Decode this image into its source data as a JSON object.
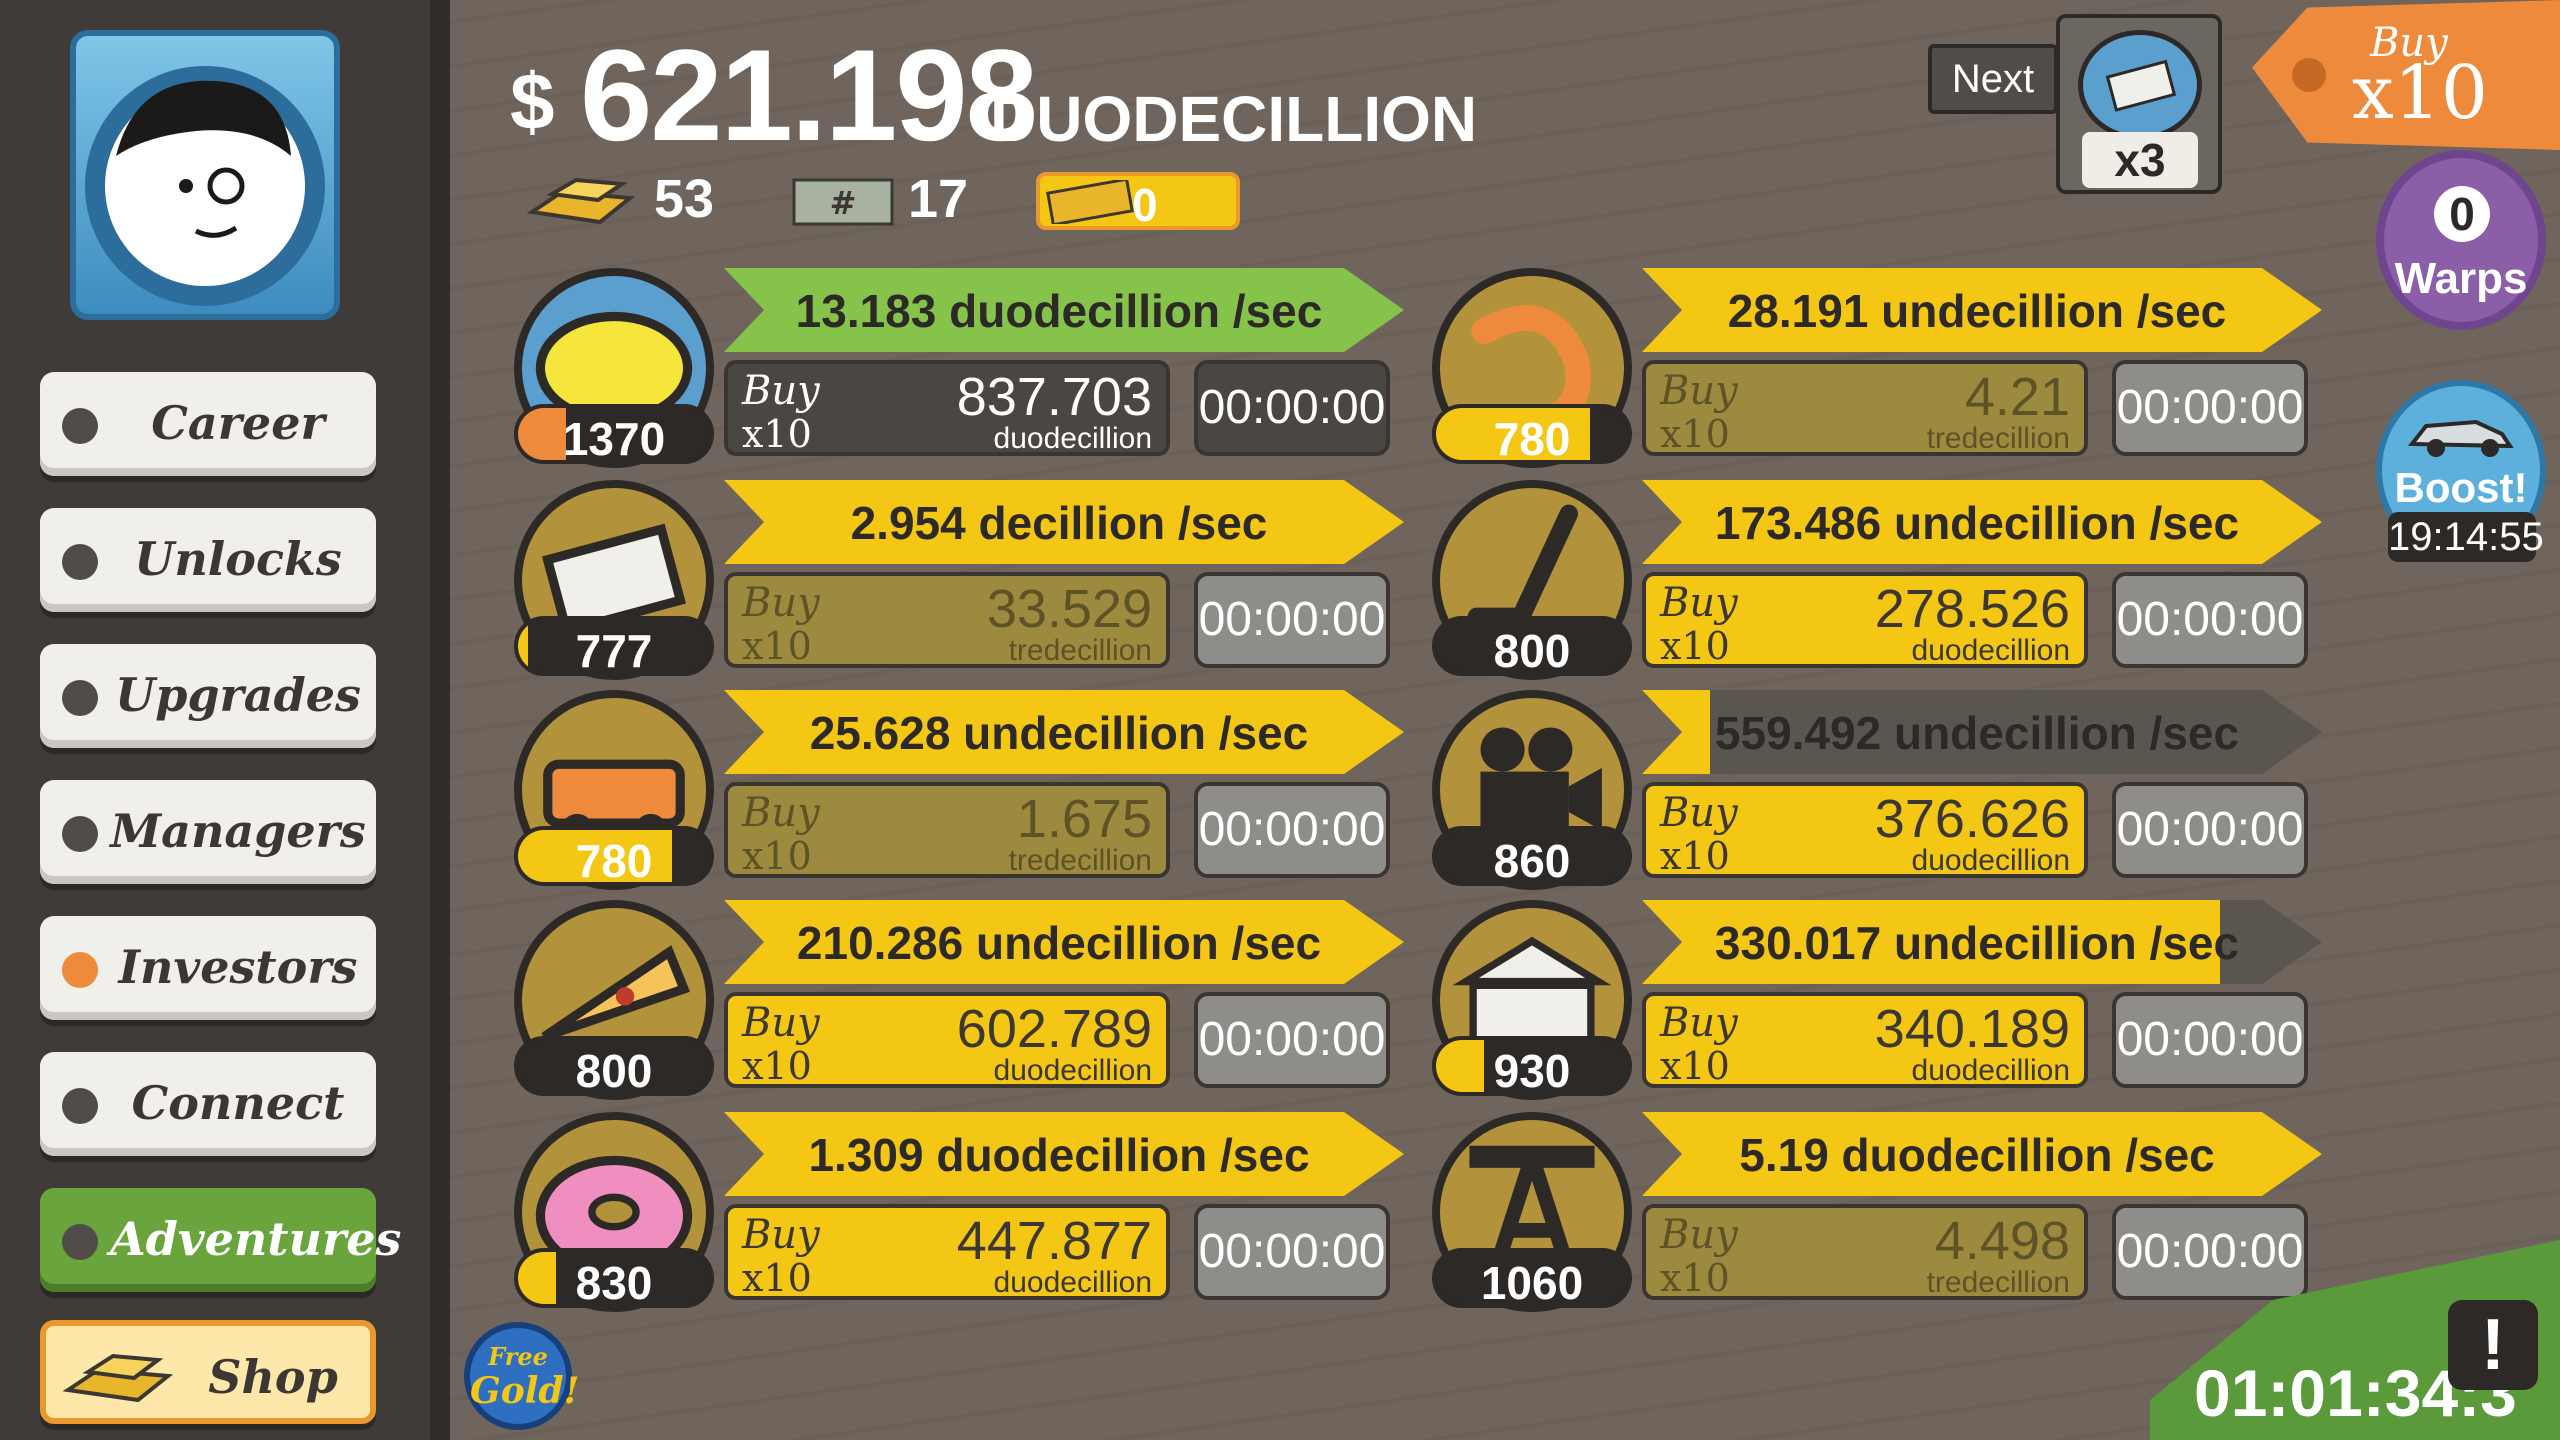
{
  "header": {
    "money_sign": "$",
    "money_amount": "621.198",
    "money_unit": "DUODECILLION",
    "gold": "53",
    "megabucks": "17",
    "tickets": "0"
  },
  "sidebar": {
    "items": [
      {
        "label": "Career"
      },
      {
        "label": "Unlocks"
      },
      {
        "label": "Upgrades"
      },
      {
        "label": "Managers"
      },
      {
        "label": "Investors"
      },
      {
        "label": "Connect"
      },
      {
        "label": "Adventures"
      },
      {
        "label": "Shop"
      }
    ]
  },
  "top_right": {
    "next_label": "Next",
    "news_multiplier": "x3",
    "buy_tag_line1": "Buy",
    "buy_tag_line2": "x10",
    "warps_count": "0",
    "warps_label": "Warps",
    "boost_label": "Boost!",
    "boost_timer": "19:14:55"
  },
  "bottom": {
    "free_gold_line1": "Free",
    "free_gold_line2": "Gold!",
    "tv_timer": "01:01:34:3",
    "tv_icon": "!"
  },
  "businesses": [
    {
      "icon": "lemon-icon",
      "count": "1370",
      "count_fill": 0.25,
      "rate": "13.183 duodecillion /sec",
      "rate_fill": 1.0,
      "buy1": "Buy",
      "buy2": "x10",
      "cost": "837.703",
      "cost_unit": "duodecillion",
      "timer": "00:00:00"
    },
    {
      "icon": "newspaper-icon",
      "count": "777",
      "count_fill": 0.05,
      "rate": "2.954 decillion /sec",
      "rate_fill": 1.0,
      "buy1": "Buy",
      "buy2": "x10",
      "cost": "33.529",
      "cost_unit": "tredecillion",
      "timer": "00:00:00"
    },
    {
      "icon": "car-wash-icon",
      "count": "780",
      "count_fill": 0.8,
      "rate": "25.628 undecillion /sec",
      "rate_fill": 1.0,
      "buy1": "Buy",
      "buy2": "x10",
      "cost": "1.675",
      "cost_unit": "tredecillion",
      "timer": "00:00:00"
    },
    {
      "icon": "pizza-icon",
      "count": "800",
      "count_fill": 0.0,
      "rate": "210.286 undecillion /sec",
      "rate_fill": 1.0,
      "buy1": "Buy",
      "buy2": "x10",
      "cost": "602.789",
      "cost_unit": "duodecillion",
      "timer": "00:00:00"
    },
    {
      "icon": "donut-icon",
      "count": "830",
      "count_fill": 0.2,
      "rate": "1.309 duodecillion /sec",
      "rate_fill": 1.0,
      "buy1": "Buy",
      "buy2": "x10",
      "cost": "447.877",
      "cost_unit": "duodecillion",
      "timer": "00:00:00"
    },
    {
      "icon": "shrimp-icon",
      "count": "780",
      "count_fill": 0.8,
      "rate": "28.191 undecillion /sec",
      "rate_fill": 1.0,
      "buy1": "Buy",
      "buy2": "x10",
      "cost": "4.21",
      "cost_unit": "tredecillion",
      "timer": "00:00:00"
    },
    {
      "icon": "hockey-icon",
      "count": "800",
      "count_fill": 0.0,
      "rate": "173.486 undecillion /sec",
      "rate_fill": 1.0,
      "buy1": "Buy",
      "buy2": "x10",
      "cost": "278.526",
      "cost_unit": "duodecillion",
      "timer": "00:00:00"
    },
    {
      "icon": "movie-camera-icon",
      "count": "860",
      "count_fill": 0.0,
      "rate": "559.492 undecillion /sec",
      "rate_fill": 0.1,
      "buy1": "Buy",
      "buy2": "x10",
      "cost": "376.626",
      "cost_unit": "duodecillion",
      "timer": "00:00:00"
    },
    {
      "icon": "bank-icon",
      "count": "930",
      "count_fill": 0.25,
      "rate": "330.017 undecillion /sec",
      "rate_fill": 0.85,
      "buy1": "Buy",
      "buy2": "x10",
      "cost": "340.189",
      "cost_unit": "duodecillion",
      "timer": "00:00:00"
    },
    {
      "icon": "oil-rig-icon",
      "count": "1060",
      "count_fill": 0.0,
      "rate": "5.19 duodecillion /sec",
      "rate_fill": 1.0,
      "buy1": "Buy",
      "buy2": "x10",
      "cost": "4.498",
      "cost_unit": "tredecillion",
      "timer": "00:00:00"
    }
  ],
  "colors": {
    "yellow": "#f3c713",
    "green": "#86c34a",
    "orange": "#ee8a3c",
    "dark": "#2c2927"
  }
}
